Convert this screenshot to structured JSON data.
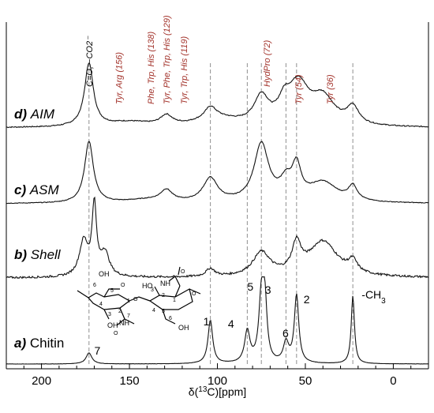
{
  "chart_data": {
    "type": "line",
    "xlabel": "δ(13C)[ppm]",
    "x_reversed": true,
    "xlim": [
      220,
      -20
    ],
    "x_ticks": [
      200,
      150,
      100,
      50,
      0
    ],
    "y_ticks": [],
    "grid": false,
    "series": [
      {
        "key": "d",
        "letter": "d)",
        "name": "AIM"
      },
      {
        "key": "c",
        "letter": "c)",
        "name": "ASM"
      },
      {
        "key": "b",
        "letter": "b)",
        "name": "Shell"
      },
      {
        "key": "a",
        "letter": "a)",
        "name": "Chitin"
      }
    ],
    "reference_lines_ppm": [
      173,
      104,
      83,
      75,
      61,
      55,
      23
    ],
    "top_labels": [
      {
        "text": "C=O, −CO2⁻",
        "ppm": 173
      }
    ],
    "residue_labels": [
      {
        "text": "Tyr, Arg  (156)",
        "ppm": 156
      },
      {
        "text": "Phe, Trp, His (138)",
        "ppm": 138
      },
      {
        "text": "Tyr, Phe, Trp, His (129)",
        "ppm": 129
      },
      {
        "text": "Tyr, Trp, His (119)",
        "ppm": 119
      },
      {
        "text": "HydPro  (72)",
        "ppm": 72
      },
      {
        "text": "Tyr (54)",
        "ppm": 54
      },
      {
        "text": "Tyr (36)",
        "ppm": 36
      }
    ],
    "chitin_peak_labels": [
      {
        "text": "7",
        "ppm": 170
      },
      {
        "text": "1",
        "ppm": 108
      },
      {
        "text": "4",
        "ppm": 94
      },
      {
        "text": "5",
        "ppm": 83
      },
      {
        "text": "3",
        "ppm": 73
      },
      {
        "text": "6",
        "ppm": 63
      },
      {
        "text": "2",
        "ppm": 51
      },
      {
        "text": "-CH3",
        "ppm": 18
      }
    ],
    "structure_atom_labels": [
      "OH",
      "6",
      "5",
      "O",
      "4",
      "1",
      "O",
      "3",
      "2",
      "OH",
      "NH",
      "7",
      "O",
      "HO",
      "3",
      "NH",
      "2",
      "1",
      "O",
      "4",
      "5",
      "6",
      "OH",
      "O"
    ]
  }
}
